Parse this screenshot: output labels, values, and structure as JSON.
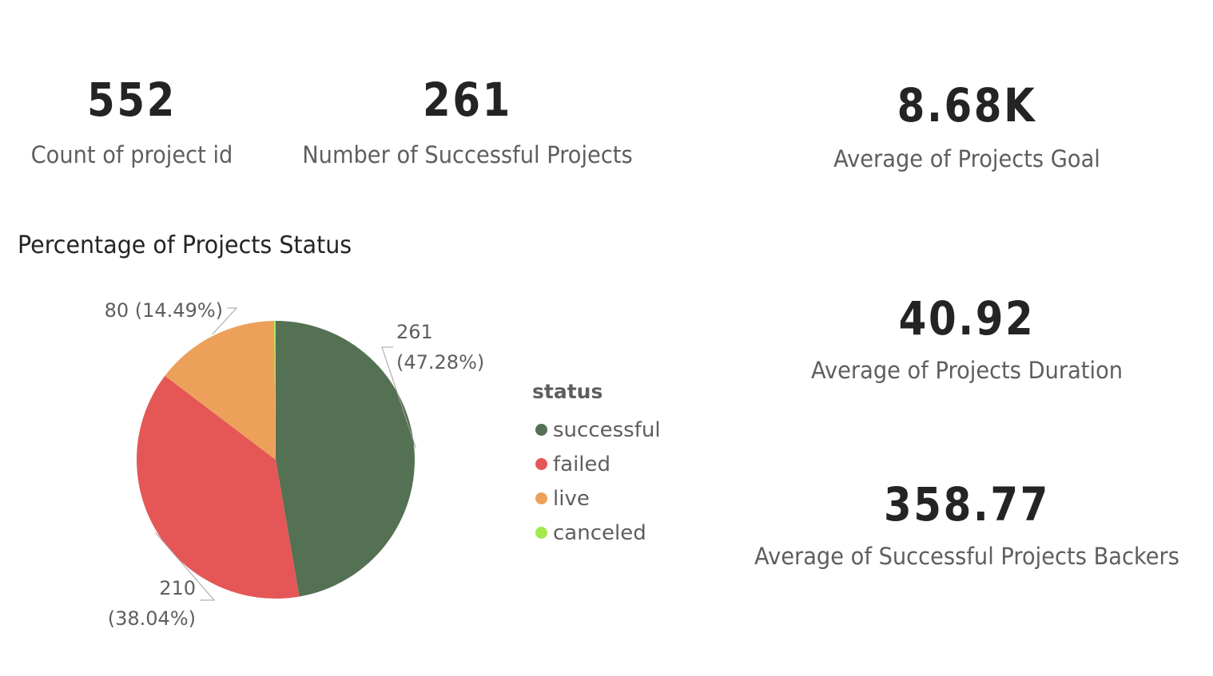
{
  "cards": {
    "count": {
      "value": "552",
      "label": "Count of project id"
    },
    "successful": {
      "value": "261",
      "label": "Number of Successful Projects"
    },
    "goal": {
      "value": "8.68K",
      "label": "Average of Projects Goal"
    },
    "duration": {
      "value": "40.92",
      "label": "Average of Projects Duration"
    },
    "backers": {
      "value": "358.77",
      "label": "Average of Successful Projects Backers"
    }
  },
  "chart_data": {
    "type": "pie",
    "title": "Percentage of Projects Status",
    "legend_title": "status",
    "legend_position": "right",
    "slices": [
      {
        "name": "successful",
        "value": 261,
        "percent": "47.28%",
        "color": "#557153"
      },
      {
        "name": "failed",
        "value": 210,
        "percent": "38.04%",
        "color": "#e55757"
      },
      {
        "name": "live",
        "value": 80,
        "percent": "14.49%",
        "color": "#eda05a"
      },
      {
        "name": "canceled",
        "value": 1,
        "percent": "0.18%",
        "color": "#a4e850"
      }
    ]
  }
}
